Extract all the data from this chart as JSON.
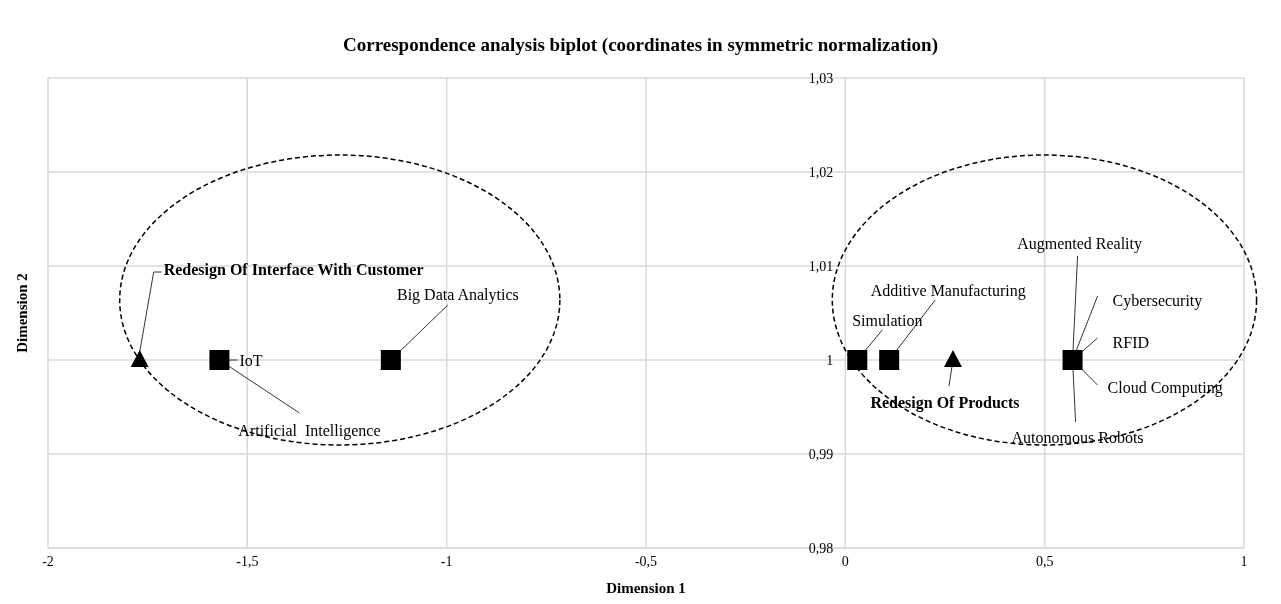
{
  "chart_data": {
    "type": "scatter",
    "title": "Correspondence analysis biplot (coordinates in symmetric normalization)",
    "xlabel": "Dimension 1",
    "ylabel": "Dimension 2",
    "xlim": [
      -2,
      1
    ],
    "xticks": [
      -2,
      {
        "value": -1.5,
        "label": "-1,5"
      },
      -1,
      {
        "value": -0.5,
        "label": "-0,5"
      },
      0,
      {
        "value": 0.5,
        "label": "0,5"
      },
      1
    ],
    "ylim": [
      0.98,
      1.03
    ],
    "yticks": [
      {
        "value": 0.98,
        "label": "0,98"
      },
      {
        "value": 0.99,
        "label": "0,99"
      },
      1,
      {
        "value": 1.01,
        "label": "1,01"
      },
      {
        "value": 1.02,
        "label": "1,02"
      },
      {
        "value": 1.03,
        "label": "1,03"
      }
    ],
    "grid": true,
    "legend": false,
    "series": [
      {
        "color": "#000000",
        "marker": "square",
        "x": [
          -1.57,
          -1.14,
          0.03,
          0.11,
          0.57
        ],
        "values": [
          1,
          1,
          1,
          1,
          1
        ]
      },
      {
        "color": "#000000",
        "marker": "triangle",
        "x": [
          -1.77,
          0.27
        ],
        "values": [
          1,
          1
        ]
      }
    ],
    "annotations": [
      {
        "text": "Redesign Of Interface With Customer",
        "x": -1.77,
        "y": 1
      },
      {
        "text": "IoT",
        "x": -1.57,
        "y": 1
      },
      {
        "text": "Artificial  Intelligence",
        "x": -1.57,
        "y": 1
      },
      {
        "text": "Big Data Analytics",
        "x": -1.14,
        "y": 1
      },
      {
        "text": "Simulation",
        "x": 0.03,
        "y": 1
      },
      {
        "text": "Additive Manufacturing",
        "x": 0.11,
        "y": 1
      },
      {
        "text": "Redesign Of Products",
        "x": 0.27,
        "y": 1
      },
      {
        "text": "Augmented Reality",
        "x": 0.57,
        "y": 1
      },
      {
        "text": "Cybersecurity",
        "x": 0.57,
        "y": 1
      },
      {
        "text": "RFID",
        "x": 0.57,
        "y": 1
      },
      {
        "text": "Cloud Computing",
        "x": 0.57,
        "y": 1
      },
      {
        "text": "Autonomous Robots",
        "x": 0.57,
        "y": 1
      }
    ]
  }
}
